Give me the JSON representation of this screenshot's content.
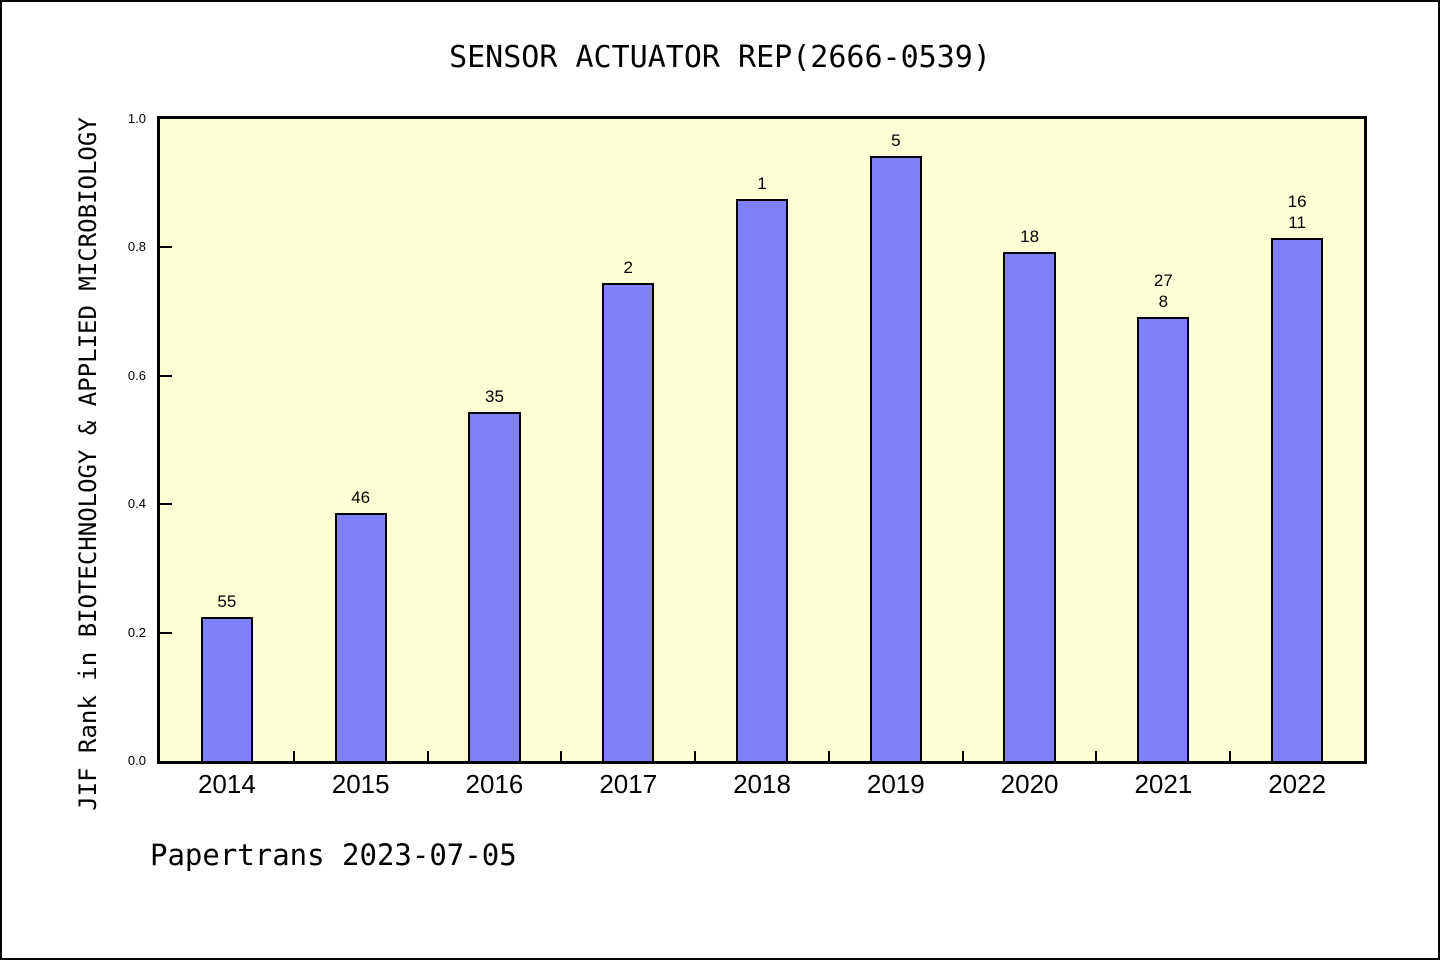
{
  "figure": {
    "title": "SENSOR ACTUATOR REP(2666-0539)",
    "footer": "Papertrans 2023-07-05"
  },
  "chart_data": {
    "type": "bar",
    "title": "SENSOR ACTUATOR REP(2666-0539)",
    "xlabel": "",
    "ylabel": "JIF Rank in BIOTECHNOLOGY & APPLIED MICROBIOLOGY",
    "categories": [
      "2014",
      "2015",
      "2016",
      "2017",
      "2018",
      "2019",
      "2020",
      "2021",
      "2022"
    ],
    "values": [
      0.224,
      0.386,
      0.543,
      0.744,
      0.876,
      0.943,
      0.793,
      0.692,
      0.814
    ],
    "bar_labels": [
      [
        "55"
      ],
      [
        "46"
      ],
      [
        "35"
      ],
      [
        "2"
      ],
      [
        "1"
      ],
      [
        "5"
      ],
      [
        "18"
      ],
      [
        "27",
        "8"
      ],
      [
        "16",
        "11"
      ]
    ],
    "ylim": [
      0.0,
      1.0
    ],
    "yticks": [
      0.0,
      0.2,
      0.4,
      0.6,
      0.8,
      1.0
    ],
    "ytick_labels": [
      "0.0",
      "0.2",
      "0.4",
      "0.6",
      "0.8",
      "1.0"
    ],
    "grid": false,
    "legend": "none",
    "annotation": "Papertrans 2023-07-05",
    "colors": {
      "bar_fill": "#8080F8",
      "bar_border": "#000000",
      "plot_bg": "#FFFFD6",
      "text": "#000000"
    }
  }
}
